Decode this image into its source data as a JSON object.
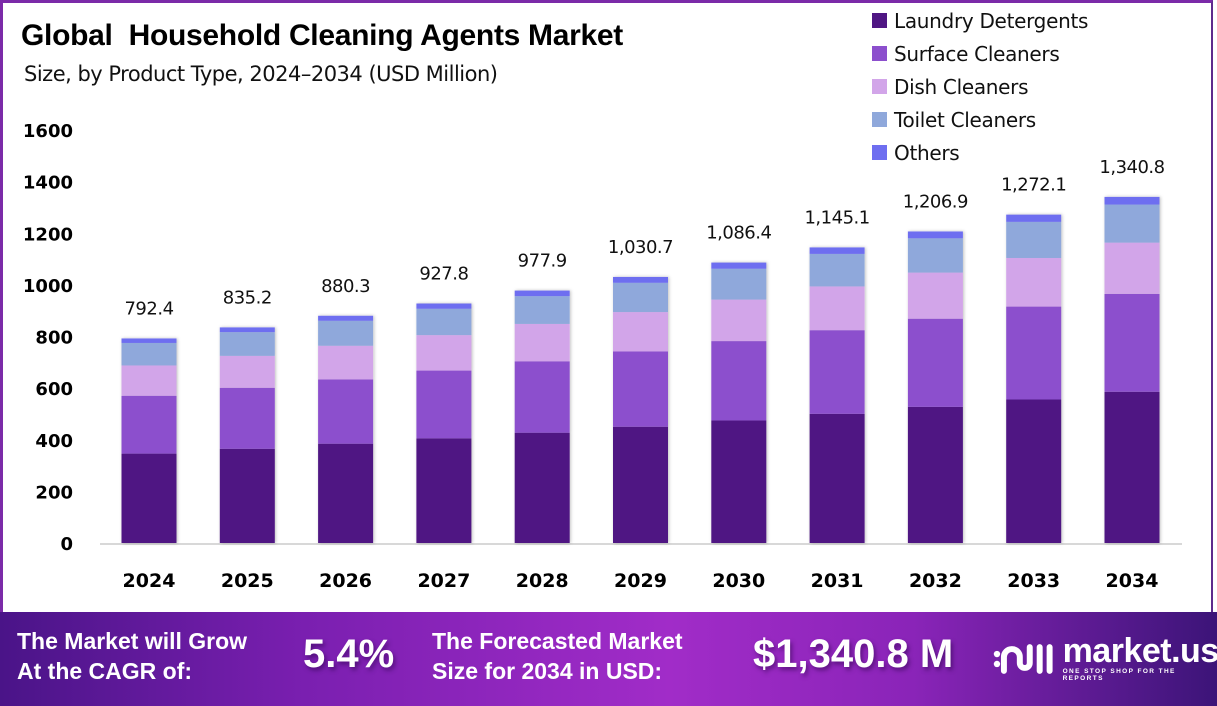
{
  "header": {
    "title": "Global  Household Cleaning Agents Market",
    "subtitle": "Size, by Product Type, 2024–2034 (USD Million)"
  },
  "chart_data": {
    "type": "bar",
    "stacked": true,
    "title": "Global  Household Cleaning Agents Market",
    "subtitle": "Size, by Product Type, 2024–2034 (USD Million)",
    "xlabel": "",
    "ylabel": "",
    "ylim": [
      0,
      1600
    ],
    "yticks": [
      0,
      200,
      400,
      600,
      800,
      1000,
      1200,
      1400,
      1600
    ],
    "grid": false,
    "legend_position": "top-right",
    "categories": [
      "2024",
      "2025",
      "2026",
      "2027",
      "2028",
      "2029",
      "2030",
      "2031",
      "2032",
      "2033",
      "2034"
    ],
    "totals": [
      792.4,
      835.2,
      880.3,
      927.8,
      977.9,
      1030.7,
      1086.4,
      1145.1,
      1206.9,
      1272.1,
      1340.8
    ],
    "total_labels": [
      "792.4",
      "835.2",
      "880.3",
      "927.8",
      "977.9",
      "1,030.7",
      "1,086.4",
      "1,145.1",
      "1,206.9",
      "1,272.1",
      "1,340.8"
    ],
    "series": [
      {
        "name": "Laundry Detergents",
        "color": "#4f1683",
        "values": [
          346.3,
          365.0,
          384.7,
          405.4,
          427.3,
          450.4,
          474.8,
          500.4,
          527.4,
          555.9,
          585.9
        ]
      },
      {
        "name": "Surface Cleaners",
        "color": "#8c4fcd",
        "values": [
          224.2,
          236.4,
          249.1,
          262.6,
          276.7,
          291.7,
          307.4,
          324.1,
          341.6,
          360.0,
          379.4
        ]
      },
      {
        "name": "Dish Cleaners",
        "color": "#d2a5e9",
        "values": [
          117.3,
          123.6,
          130.3,
          137.3,
          144.7,
          152.5,
          160.8,
          169.5,
          178.6,
          188.3,
          198.4
        ]
      },
      {
        "name": "Toilet Cleaners",
        "color": "#8fa8db",
        "values": [
          87.2,
          91.9,
          96.8,
          102.1,
          107.6,
          113.4,
          119.5,
          126.0,
          132.8,
          139.9,
          147.5
        ]
      },
      {
        "name": "Others",
        "color": "#6e6ef0",
        "values": [
          17.4,
          18.3,
          19.4,
          20.4,
          21.6,
          22.7,
          23.9,
          25.1,
          26.5,
          28.0,
          29.6
        ]
      }
    ]
  },
  "banner": {
    "cagr_text_line1": "The Market will Grow",
    "cagr_text_line2": "At the CAGR of:",
    "cagr_value": "5.4%",
    "forecast_text_line1": "The Forecasted Market",
    "forecast_text_line2": "Size for 2034 in USD:",
    "forecast_value": "$1,340.8 M",
    "logo_name": "market.us",
    "logo_tagline": "ONE STOP SHOP FOR THE REPORTS"
  }
}
